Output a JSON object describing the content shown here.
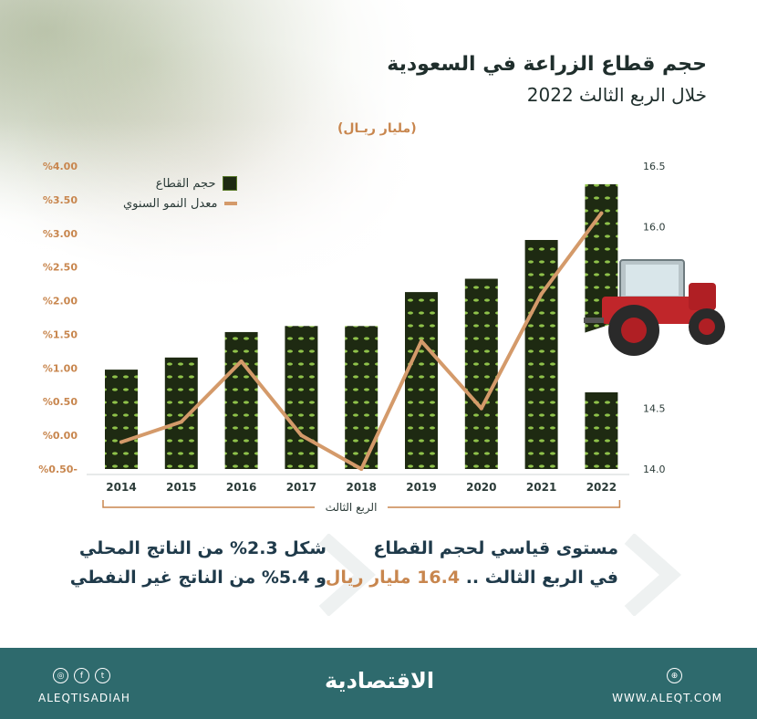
{
  "header": {
    "title": "حجم قطاع الزراعة في السعودية",
    "subtitle": "خلال الربع الثالث 2022",
    "unit": "(مليار ريـال)"
  },
  "legend": {
    "bar_label": "حجم القطاع",
    "line_label": "معدل النمو السنوي"
  },
  "bracket_label": "الربع الثالث",
  "chart_data": {
    "type": "bar",
    "categories": [
      "2014",
      "2015",
      "2016",
      "2017",
      "2018",
      "2019",
      "2020",
      "2021",
      "2022"
    ],
    "series": [
      {
        "name": "حجم القطاع",
        "type": "bar",
        "axis": "right",
        "values": [
          14.82,
          14.92,
          15.13,
          15.18,
          15.18,
          15.46,
          15.57,
          15.89,
          16.35
        ]
      },
      {
        "name": "معدل النمو السنوي",
        "type": "line",
        "axis": "left",
        "values": [
          -0.1,
          0.2,
          1.1,
          0.0,
          -0.5,
          1.4,
          0.4,
          2.1,
          3.3
        ]
      }
    ],
    "y_left": {
      "ticks": [
        "%4.00",
        "%3.50",
        "%3.00",
        "%2.50",
        "%2.00",
        "%1.50",
        "%1.00",
        "%0.50",
        "%0.00",
        "%0.50-"
      ],
      "range": [
        -0.5,
        4.0
      ]
    },
    "y_right": {
      "ticks": [
        "16.5",
        "16.0",
        "15.5",
        "15.0",
        "14.5",
        "14.0"
      ],
      "range": [
        14.0,
        16.5
      ]
    },
    "colors": {
      "bar": "#1e2a12",
      "bar_leaf": "#8fc24a",
      "line": "#d49a6a",
      "left_axis": "#c8864e",
      "right_axis": "#2b3b38"
    }
  },
  "highlights": {
    "right": {
      "line1": "مستوى قياسي لحجم القطاع",
      "line2_prefix": "في الربع الثالث  ..",
      "line2_value": "16.4  مليار ريال"
    },
    "left": {
      "line1": "شكل 2.3% من الناتج المحلي",
      "line2": "و 5.4% من الناتج غير النفطي"
    }
  },
  "footer": {
    "logo": "الاقتصادية",
    "handle": "ALEQTISADIAH",
    "url": "WWW.ALEQT.COM",
    "icons": [
      "instagram-icon",
      "facebook-icon",
      "twitter-icon",
      "globe-icon"
    ]
  }
}
